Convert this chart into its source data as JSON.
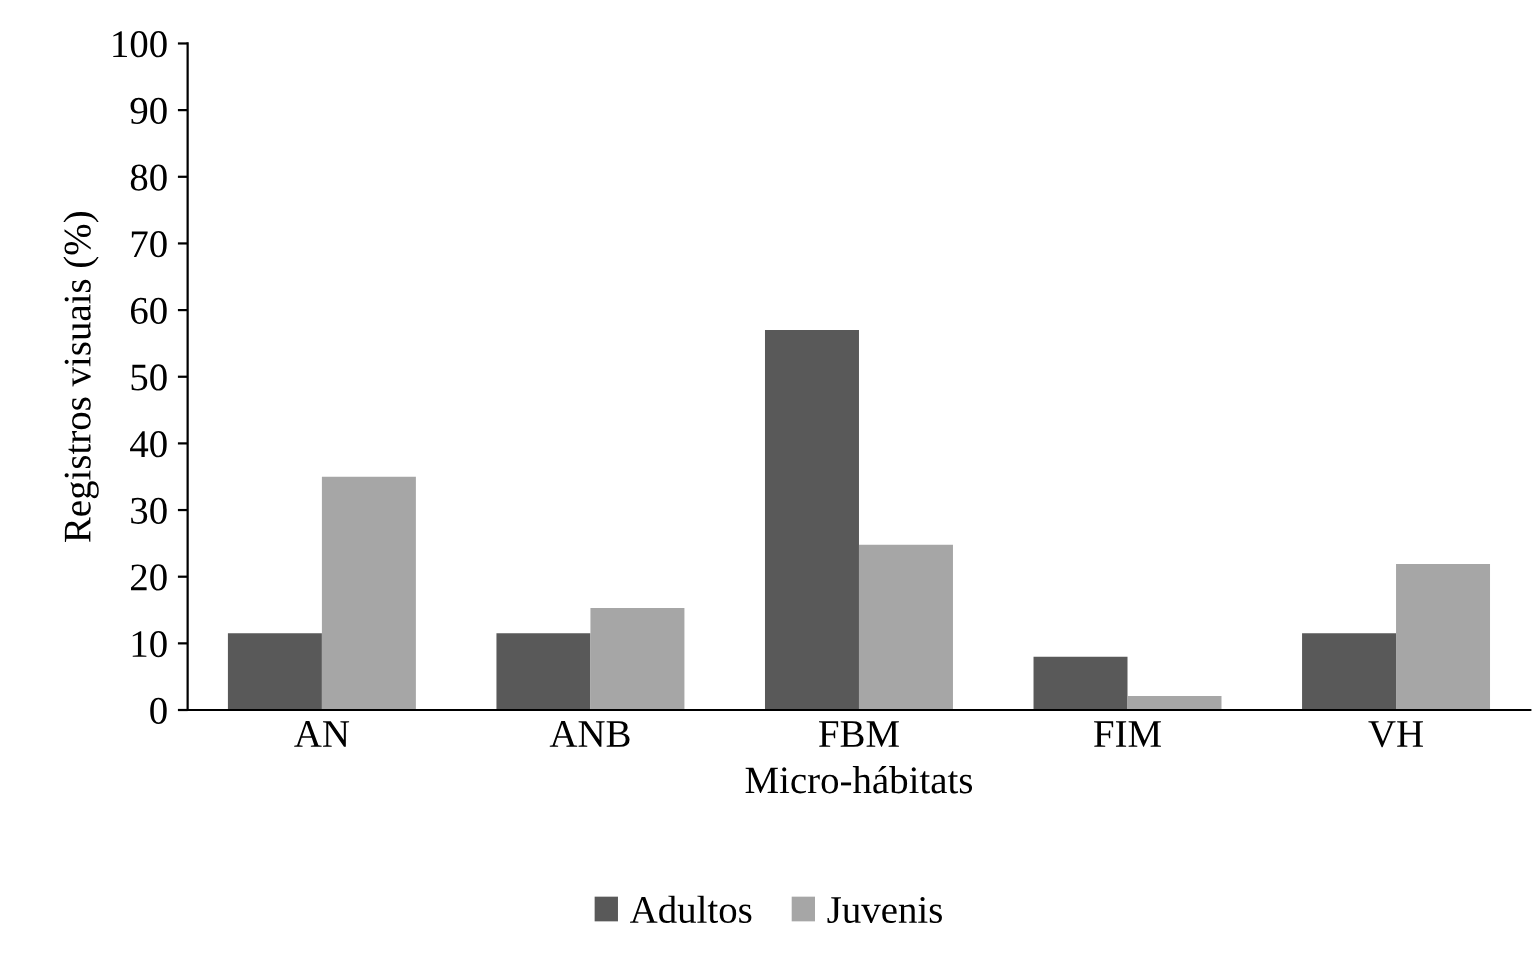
{
  "chart_data": {
    "type": "bar",
    "xlabel": "Micro-hábitats",
    "ylabel": "Registros visuais (%)",
    "categories": [
      "AN",
      "ANB",
      "FBM",
      "FIM",
      "VH"
    ],
    "series": [
      {
        "name": "Adultos",
        "color": "#595959",
        "values": [
          11.5,
          11.5,
          57,
          8,
          11.5
        ]
      },
      {
        "name": "Juvenis",
        "color": "#a6a6a6",
        "values": [
          35,
          15.3,
          24.8,
          2.1,
          21.9
        ]
      }
    ],
    "ylim": [
      0,
      100
    ],
    "yticks": [
      0,
      10,
      20,
      30,
      40,
      50,
      60,
      70,
      80,
      90,
      100
    ],
    "grid": false,
    "legend": "bottom"
  }
}
